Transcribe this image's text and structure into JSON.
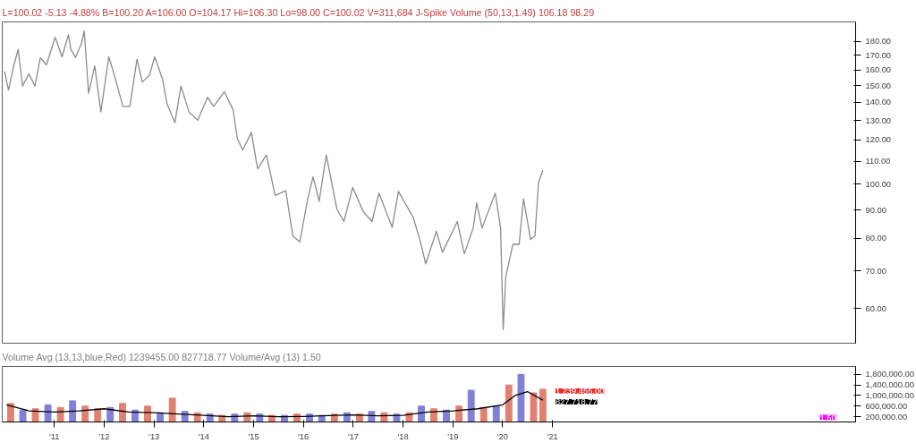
{
  "chart_data": [
    {
      "type": "line",
      "title": "L=100.02 -5.13 -4.88% B=100.20 A=106.00 O=104.17 Hi=106.30 Lo=98.00 C=100.02 V=311,684 J-Spike Volume (50,13,1.49) 106.18 98.29",
      "log": "y",
      "tick_labels": "y",
      "xlim": [
        "2009-12-15",
        "2027-02-01"
      ],
      "ylim": [
        52,
        195
      ],
      "yticks": [
        {
          "value": 60,
          "label": "60.00"
        },
        {
          "value": 70,
          "label": "70.00"
        },
        {
          "value": 80,
          "label": "80.00"
        },
        {
          "value": 90,
          "label": "90.00"
        },
        {
          "value": 100,
          "label": "100.00"
        },
        {
          "value": 110,
          "label": "110.00"
        },
        {
          "value": 120,
          "label": "120.00"
        },
        {
          "value": 130,
          "label": "130.00"
        },
        {
          "value": 140,
          "label": "140.00"
        },
        {
          "value": 150,
          "label": "150.00"
        },
        {
          "value": 160,
          "label": "160.00"
        },
        {
          "value": 170,
          "label": "170.00"
        },
        {
          "value": 180,
          "label": "180.00"
        }
      ],
      "series": [
        {
          "color": "#8c8c8c",
          "x": [
            "2010-01-01",
            "2010-01-30",
            "2010-03-09",
            "2010-04-11",
            "2010-05-13",
            "2010-06-28",
            "2010-08-12",
            "2010-09-20",
            "2010-11-04",
            "2011-01-07",
            "2011-02-27",
            "2011-04-14",
            "2011-05-03",
            "2011-06-05",
            "2011-07-20",
            "2011-08-08",
            "2011-09-09",
            "2011-10-24",
            "2011-12-08",
            "2012-02-04",
            "2012-03-20",
            "2012-05-18",
            "2012-07-08",
            "2012-08-29",
            "2012-10-07",
            "2012-11-28",
            "2013-01-06",
            "2013-03-05",
            "2013-04-06",
            "2013-06-03",
            "2013-07-18",
            "2013-09-14",
            "2013-11-18",
            "2014-01-28",
            "2014-03-14",
            "2014-05-31",
            "2014-08-03",
            "2014-09-04",
            "2014-10-13",
            "2014-12-16",
            "2015-01-30",
            "2015-04-05",
            "2015-06-08",
            "2015-08-25",
            "2015-10-16",
            "2015-12-06",
            "2016-02-02",
            "2016-03-12",
            "2016-04-26",
            "2016-06-17",
            "2016-09-03",
            "2016-10-24",
            "2016-12-28",
            "2017-03-15",
            "2017-05-18",
            "2017-07-08",
            "2017-10-13",
            "2017-11-28",
            "2018-03-17",
            "2018-05-08",
            "2018-06-16",
            "2018-09-02",
            "2018-10-17",
            "2019-02-03",
            "2019-03-26",
            "2019-05-30",
            "2019-06-25",
            "2019-08-03",
            "2019-11-08",
            "2019-12-17",
            "2020-01-05",
            "2020-01-24",
            "2020-03-16",
            "2020-05-01",
            "2020-06-02",
            "2020-07-24",
            "2020-08-25",
            "2020-09-20",
            "2020-10-22"
          ],
          "values": [
            159.1,
            147.3,
            162.8,
            174.1,
            149.8,
            157.5,
            149.8,
            168.4,
            163.4,
            183.0,
            168.9,
            184.9,
            174.1,
            168.4,
            178.8,
            188.0,
            145.4,
            162.8,
            134.6,
            168.9,
            155.4,
            137.8,
            137.8,
            167.3,
            152.3,
            156.5,
            168.9,
            153.9,
            139.2,
            128.9,
            149.8,
            134.6,
            130.2,
            143.0,
            137.8,
            146.3,
            136.0,
            120.6,
            115.1,
            123.8,
            106.6,
            112.8,
            95.5,
            97.4,
            80.8,
            78.9,
            94.2,
            103.1,
            93.2,
            112.8,
            90.2,
            85.8,
            98.7,
            89.3,
            85.8,
            96.4,
            83.8,
            97.1,
            87.2,
            78.9,
            72.1,
            82.4,
            75.6,
            85.8,
            75.1,
            83.5,
            92.6,
            83.5,
            96.4,
            83.5,
            55.0,
            68.3,
            78.1,
            78.1,
            94.2,
            79.7,
            80.8,
            100.7,
            105.9
          ]
        }
      ]
    },
    {
      "type": "bar",
      "title": "Volume Avg (13,13,blue,Red) 1239455.00 827718.77 Volume/Avg (13) 1.50",
      "xlim": [
        "2009-12-15",
        "2027-02-01"
      ],
      "ylim": [
        0,
        2100000
      ],
      "xticks": [
        {
          "value": "2011-01-01",
          "label": "'11"
        },
        {
          "value": "2012-01-01",
          "label": "'12"
        },
        {
          "value": "2013-01-01",
          "label": "'13"
        },
        {
          "value": "2014-01-01",
          "label": "'14"
        },
        {
          "value": "2015-01-01",
          "label": "'15"
        },
        {
          "value": "2016-01-01",
          "label": "'16"
        },
        {
          "value": "2017-01-01",
          "label": "'17"
        },
        {
          "value": "2018-01-01",
          "label": "'18"
        },
        {
          "value": "2019-01-01",
          "label": "'19"
        },
        {
          "value": "2020-01-01",
          "label": "'20"
        },
        {
          "value": "2021-01-01",
          "label": "'21"
        }
      ],
      "yticks": [
        {
          "value": 200000,
          "label": "200,000.00"
        },
        {
          "value": 600000,
          "label": "600,000.00"
        },
        {
          "value": 1000000,
          "label": "1,000,000.00"
        },
        {
          "value": 1400000,
          "label": "1,400,000.00"
        },
        {
          "value": 1800000,
          "label": "1,800,000.00"
        }
      ],
      "annotations": [
        {
          "text": "1,239,455.00",
          "x": "2020-10-22",
          "y": 1239455
        },
        {
          "text": "827,718.77",
          "x": "2020-10-22",
          "y": 827718.77
        },
        "1.50"
      ],
      "series": [
        {
          "type": "bar",
          "x": [
            "2010-02-15",
            "2010-05-15",
            "2010-08-15",
            "2010-11-15",
            "2011-02-15",
            "2011-05-15",
            "2011-08-15",
            "2011-11-15",
            "2012-02-15",
            "2012-05-15",
            "2012-08-15",
            "2012-11-15",
            "2013-02-15",
            "2013-05-15",
            "2013-08-15",
            "2013-11-15",
            "2014-02-15",
            "2014-05-15",
            "2014-08-15",
            "2014-11-15",
            "2015-02-15",
            "2015-05-15",
            "2015-08-15",
            "2015-11-15",
            "2016-02-15",
            "2016-05-15",
            "2016-08-15",
            "2016-11-15",
            "2017-02-15",
            "2017-05-15",
            "2017-08-15",
            "2017-11-15",
            "2018-02-15",
            "2018-05-15",
            "2018-08-15",
            "2018-11-15",
            "2019-02-15",
            "2019-05-15",
            "2019-08-15",
            "2019-11-15",
            "2020-02-15",
            "2020-05-15",
            "2020-08-15",
            "2020-10-22"
          ],
          "values": [
            700000,
            450000,
            500000,
            650000,
            550000,
            800000,
            600000,
            500000,
            550000,
            700000,
            450000,
            600000,
            350000,
            900000,
            400000,
            350000,
            300000,
            250000,
            300000,
            350000,
            300000,
            250000,
            250000,
            300000,
            300000,
            250000,
            300000,
            350000,
            300000,
            400000,
            350000,
            300000,
            350000,
            600000,
            500000,
            450000,
            600000,
            1200000,
            550000,
            600000,
            1400000,
            1800000,
            1100000,
            1239455
          ],
          "colors": [
            "#e08070",
            "#8080d8",
            "#e08070",
            "#8080d8",
            "#e08070",
            "#8080d8",
            "#e08070",
            "#e08070",
            "#8080d8",
            "#e08070",
            "#8080d8",
            "#e08070",
            "#8080d8",
            "#e08070",
            "#8080d8",
            "#e08070",
            "#8080d8",
            "#e08070",
            "#8080d8",
            "#e08070",
            "#8080d8",
            "#e08070",
            "#8080d8",
            "#e08070",
            "#8080d8",
            "#8080d8",
            "#e08070",
            "#8080d8",
            "#e08070",
            "#8080d8",
            "#e08070",
            "#8080d8",
            "#e08070",
            "#8080d8",
            "#e08070",
            "#8080d8",
            "#e08070",
            "#8080d8",
            "#e08070",
            "#8080d8",
            "#e08070",
            "#8080d8",
            "#e08070",
            "#e08070"
          ]
        },
        {
          "type": "line",
          "color": "#000000",
          "x": [
            "2010-01-15",
            "2010-07-01",
            "2011-01-01",
            "2011-07-01",
            "2012-01-01",
            "2012-07-01",
            "2013-01-01",
            "2013-07-01",
            "2014-01-01",
            "2014-07-01",
            "2015-01-01",
            "2015-07-01",
            "2016-01-01",
            "2016-07-01",
            "2017-01-01",
            "2017-07-01",
            "2018-01-01",
            "2018-07-01",
            "2019-01-01",
            "2019-07-01",
            "2020-01-01",
            "2020-04-01",
            "2020-07-01",
            "2020-10-22"
          ],
          "values": [
            650000,
            420000,
            380000,
            420000,
            500000,
            380000,
            350000,
            300000,
            250000,
            200000,
            230000,
            200000,
            210000,
            240000,
            270000,
            230000,
            250000,
            380000,
            420000,
            500000,
            650000,
            1000000,
            1150000,
            827718.77
          ]
        }
      ]
    }
  ]
}
